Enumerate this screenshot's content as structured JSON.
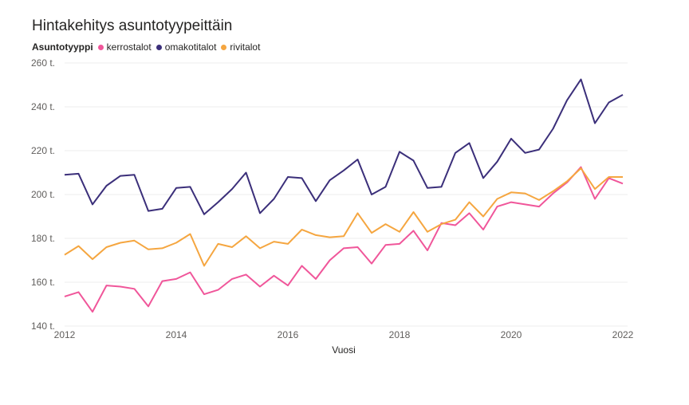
{
  "chart_data": {
    "type": "line",
    "title": "Hintakehitys asuntotyypeittäin",
    "xlabel": "Vuosi",
    "ylabel": "",
    "legend_title": "Asuntotyyppi",
    "legend_position": "top-left",
    "grid": true,
    "xlim": [
      2012,
      2022
    ],
    "ylim": [
      140,
      260
    ],
    "x_ticks": [
      2012,
      2014,
      2016,
      2018,
      2020,
      2022
    ],
    "y_ticks": [
      140,
      160,
      180,
      200,
      220,
      240,
      260
    ],
    "y_tick_labels": [
      "140 t.",
      "160 t.",
      "180 t.",
      "200 t.",
      "220 t.",
      "240 t.",
      "260 t."
    ],
    "x": [
      2012.0,
      2012.25,
      2012.5,
      2012.75,
      2013.0,
      2013.25,
      2013.5,
      2013.75,
      2014.0,
      2014.25,
      2014.5,
      2014.75,
      2015.0,
      2015.25,
      2015.5,
      2015.75,
      2016.0,
      2016.25,
      2016.5,
      2016.75,
      2017.0,
      2017.25,
      2017.5,
      2017.75,
      2018.0,
      2018.25,
      2018.5,
      2018.75,
      2019.0,
      2019.25,
      2019.5,
      2019.75,
      2020.0,
      2020.25,
      2020.5,
      2020.75,
      2021.0,
      2021.25,
      2021.5,
      2021.75,
      2022.0
    ],
    "series": [
      {
        "name": "kerrostalot",
        "color": "#f0569a",
        "values": [
          153.5,
          155.5,
          146.5,
          158.5,
          158.0,
          157.0,
          149.0,
          160.5,
          161.5,
          164.5,
          154.5,
          156.5,
          161.5,
          163.5,
          158.0,
          163.0,
          158.5,
          167.5,
          161.5,
          170.0,
          175.5,
          176.0,
          168.5,
          177.0,
          177.5,
          183.5,
          174.5,
          187.0,
          186.0,
          191.5,
          184.0,
          194.5,
          196.5,
          195.5,
          194.5,
          200.5,
          205.5,
          212.5,
          198.0,
          207.5,
          205.0
        ]
      },
      {
        "name": "omakotitalot",
        "color": "#3b2f7a",
        "values": [
          209.0,
          209.5,
          195.5,
          204.0,
          208.5,
          209.0,
          192.5,
          193.5,
          203.0,
          203.5,
          191.0,
          196.5,
          202.5,
          210.0,
          191.5,
          198.0,
          208.0,
          207.5,
          197.0,
          206.5,
          211.0,
          216.0,
          200.0,
          203.5,
          219.5,
          215.5,
          203.0,
          203.5,
          219.0,
          223.5,
          207.5,
          215.0,
          225.5,
          219.0,
          220.5,
          230.0,
          243.0,
          252.5,
          232.5,
          242.0,
          245.5
        ]
      },
      {
        "name": "rivitalot",
        "color": "#f5a640",
        "values": [
          172.5,
          176.5,
          170.5,
          176.0,
          178.0,
          179.0,
          175.0,
          175.5,
          178.0,
          182.0,
          167.5,
          177.5,
          176.0,
          181.0,
          175.5,
          178.5,
          177.5,
          184.0,
          181.5,
          180.5,
          181.0,
          191.5,
          182.5,
          186.5,
          183.0,
          192.0,
          183.0,
          186.5,
          188.5,
          196.5,
          190.0,
          198.0,
          201.0,
          200.5,
          197.5,
          201.5,
          206.0,
          212.0,
          202.5,
          208.0,
          208.0
        ]
      }
    ]
  }
}
